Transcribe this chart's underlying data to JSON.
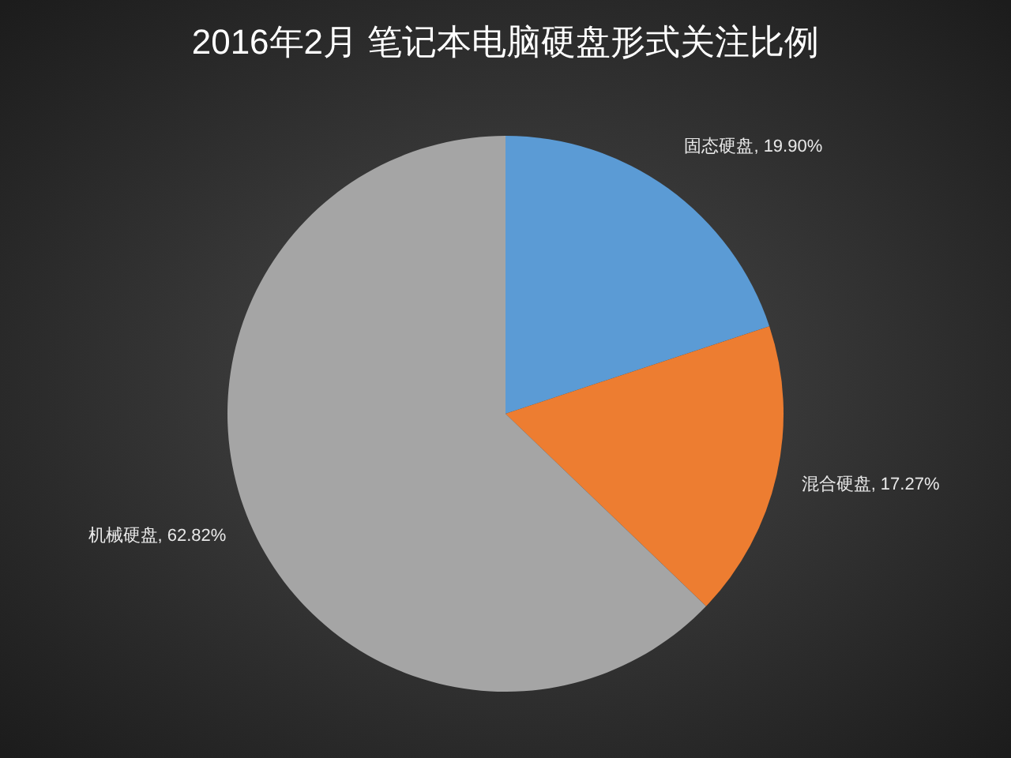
{
  "chart_data": {
    "type": "pie",
    "title": "2016年2月 笔记本电脑硬盘形式关注比例",
    "categories": [
      "固态硬盘",
      "混合硬盘",
      "机械硬盘"
    ],
    "values": [
      19.9,
      17.27,
      62.82
    ],
    "colors": [
      "#5b9bd5",
      "#ed7d31",
      "#a5a5a5"
    ],
    "value_labels": [
      "19.90%",
      "17.27%",
      "62.82%"
    ]
  }
}
